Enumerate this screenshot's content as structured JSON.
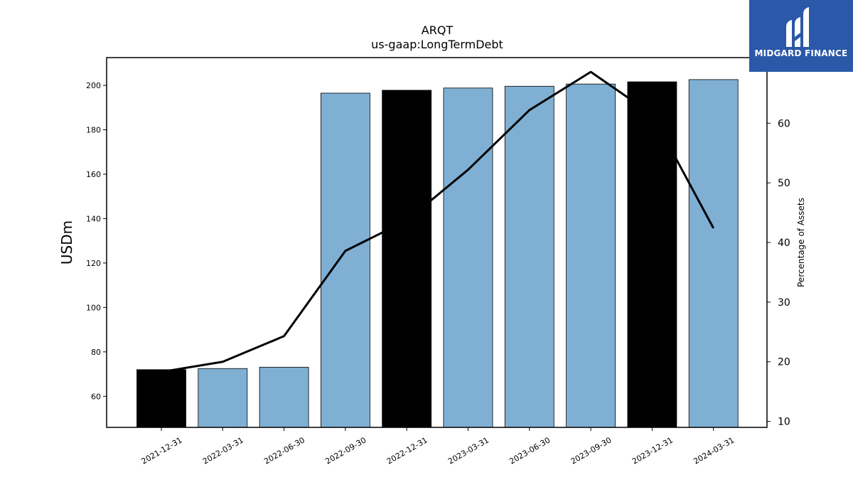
{
  "chart_data": {
    "type": "bar",
    "title": "ARQT",
    "subtitle": "us-gaap:LongTermDebt",
    "ylabel": "USDm",
    "y2label": "Percentage of Assets",
    "categories": [
      "2021-12-31",
      "2022-03-31",
      "2022-06-30",
      "2022-09-30",
      "2022-12-31",
      "2023-03-31",
      "2023-06-30",
      "2023-09-30",
      "2023-12-31",
      "2024-03-31"
    ],
    "series": [
      {
        "kind": "bar",
        "axis": "left",
        "values": [
          72.0,
          72.5,
          73.1,
          196.5,
          197.8,
          198.8,
          199.6,
          200.6,
          201.6,
          202.6
        ],
        "colors": [
          "#000000",
          "#7fb0d3",
          "#7fb0d3",
          "#7fb0d3",
          "#000000",
          "#7fb0d3",
          "#7fb0d3",
          "#7fb0d3",
          "#000000",
          "#7fb0d3"
        ]
      },
      {
        "kind": "line",
        "axis": "right",
        "color": "#000000",
        "values": [
          18.3,
          20.0,
          24.3,
          38.6,
          43.7,
          52.2,
          62.2,
          68.6,
          61.5,
          42.4
        ]
      }
    ],
    "ylim": [
      46,
      212.5
    ],
    "y2lim": [
      9,
      71
    ],
    "yticks": [
      60,
      80,
      100,
      120,
      140,
      160,
      180,
      200
    ],
    "y2ticks": [
      10,
      20,
      30,
      40,
      50,
      60
    ],
    "grid": false
  },
  "logo": {
    "text": "MIDGARD FINANCE",
    "background": "#2b58a8"
  }
}
